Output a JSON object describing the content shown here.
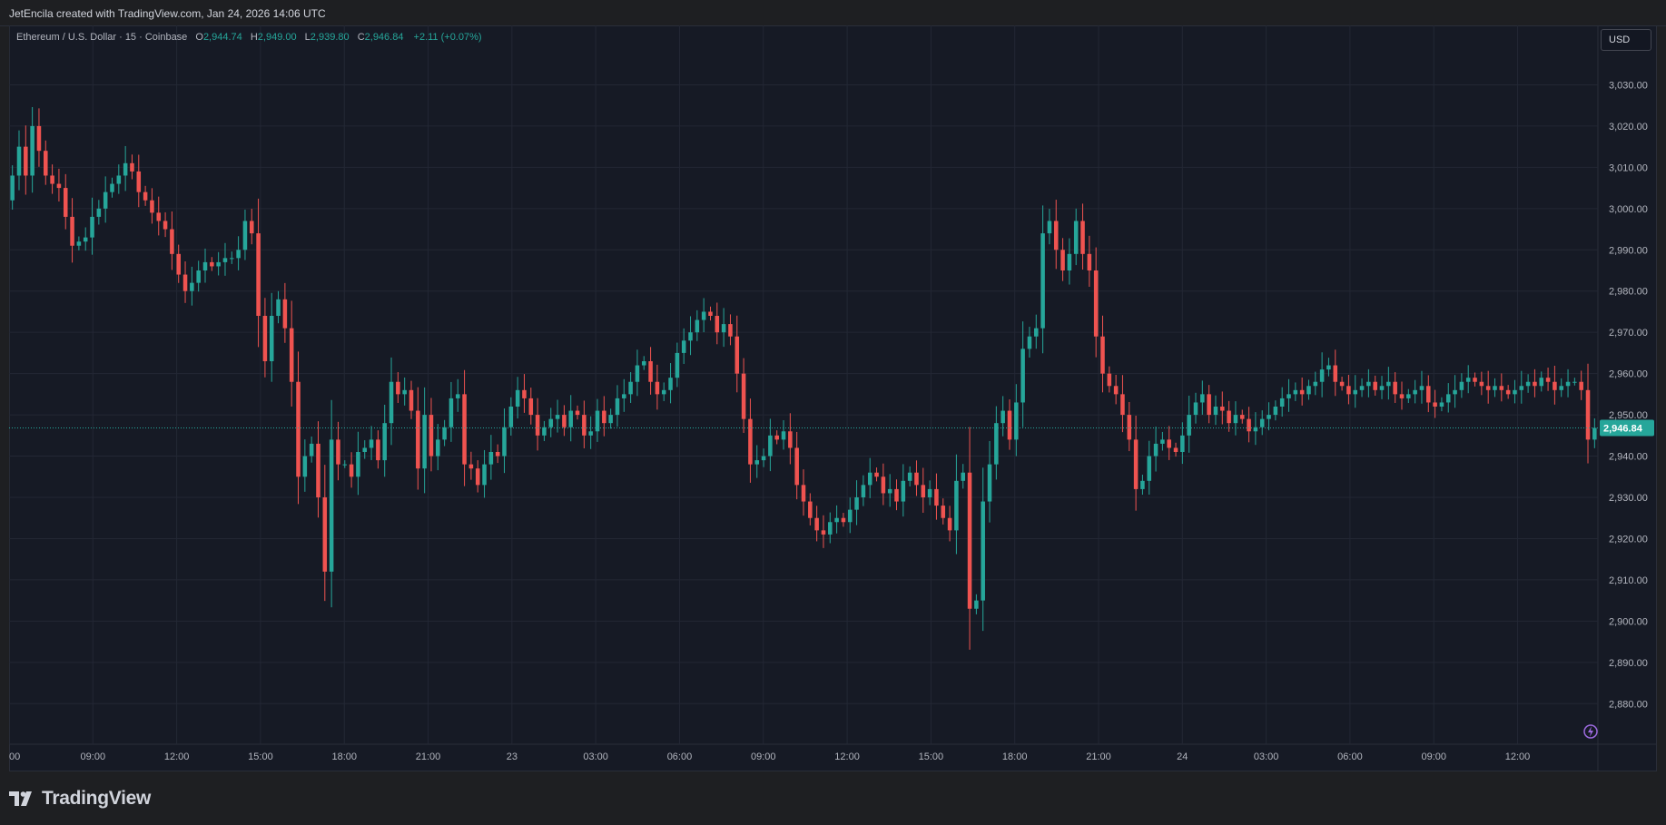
{
  "header": {
    "title": "JetEncila created with TradingView.com, Jan 24, 2026 14:06 UTC"
  },
  "legend": {
    "symbol": "Ethereum / U.S. Dollar · 15 · Coinbase",
    "open_label": "O",
    "open": "2,944.74",
    "high_label": "H",
    "high": "2,949.00",
    "low_label": "L",
    "low": "2,939.80",
    "close_label": "C",
    "close": "2,946.84",
    "change": "+2.11 (+0.07%)"
  },
  "currency_button": "USD",
  "last_price_label": "2,946.84",
  "footer": {
    "brand": "TradingView"
  },
  "colors": {
    "up": "#26a69a",
    "down": "#ef5350",
    "background": "#161a25",
    "grid": "#232734"
  },
  "chart_data": {
    "type": "candlestick",
    "title": "Ethereum / U.S. Dollar · 15 · Coinbase",
    "ylim": [
      2875,
      3040
    ],
    "y_ticks": [
      2880,
      2890,
      2900,
      2910,
      2920,
      2930,
      2940,
      2950,
      2960,
      2970,
      2980,
      2990,
      3000,
      3010,
      3020,
      3030
    ],
    "y_tick_labels": [
      "2,880.00",
      "2,890.00",
      "2,900.00",
      "2,910.00",
      "2,920.00",
      "2,930.00",
      "2,940.00",
      "2,950.00",
      "2,960.00",
      "2,970.00",
      "2,980.00",
      "2,990.00",
      "3,000.00",
      "3,010.00",
      "3,020.00",
      "3,030.00"
    ],
    "x_tick_labels": [
      "00",
      "09:00",
      "12:00",
      "15:00",
      "18:00",
      "21:00",
      "23",
      "03:00",
      "06:00",
      "09:00",
      "12:00",
      "15:00",
      "18:00",
      "21:00",
      "24",
      "03:00",
      "06:00",
      "09:00",
      "12:00"
    ],
    "last_price": 2946.84,
    "closes": [
      3008,
      3015,
      3008,
      3020,
      3014,
      3008,
      3006,
      3005,
      2998,
      2991,
      2992,
      2993,
      2998,
      3000,
      3004,
      3006,
      3008,
      3011,
      3009,
      3004,
      3002,
      2999,
      2997,
      2995,
      2989,
      2984,
      2980,
      2982,
      2985,
      2987,
      2986,
      2987,
      2988,
      2988,
      2990,
      2997,
      2994,
      2974,
      2963,
      2974,
      2978,
      2971,
      2958,
      2935,
      2940,
      2943,
      2930,
      2912,
      2944,
      2938,
      2938,
      2935,
      2941,
      2942,
      2944,
      2939,
      2948,
      2958,
      2955,
      2956,
      2951,
      2937,
      2950,
      2940,
      2944,
      2947,
      2954,
      2955,
      2938,
      2937,
      2933,
      2938,
      2941,
      2940,
      2947,
      2952,
      2956,
      2954,
      2950,
      2945,
      2947,
      2949,
      2950,
      2947,
      2951,
      2950,
      2945,
      2946,
      2951,
      2948,
      2950,
      2954,
      2955,
      2958,
      2962,
      2963,
      2958,
      2955,
      2956,
      2959,
      2965,
      2968,
      2970,
      2973,
      2975,
      2974,
      2970,
      2972,
      2969,
      2960,
      2949,
      2938,
      2939,
      2940,
      2945,
      2944,
      2946,
      2942,
      2933,
      2929,
      2925,
      2922,
      2921,
      2924,
      2925,
      2924,
      2927,
      2930,
      2933,
      2936,
      2935,
      2931,
      2932,
      2929,
      2934,
      2936,
      2933,
      2930,
      2932,
      2928,
      2925,
      2922,
      2934,
      2936,
      2903,
      2905,
      2929,
      2938,
      2948,
      2951,
      2944,
      2953,
      2966,
      2969,
      2971,
      2994,
      2997,
      2990,
      2985,
      2989,
      2997,
      2989,
      2985,
      2969,
      2960,
      2957,
      2955,
      2950,
      2944,
      2932,
      2934,
      2940,
      2943,
      2944,
      2942,
      2941,
      2945,
      2950,
      2953,
      2955,
      2950,
      2952,
      2951,
      2948,
      2950,
      2949,
      2946,
      2947,
      2949,
      2950,
      2952,
      2954,
      2955,
      2956,
      2955,
      2957,
      2958,
      2961,
      2962,
      2958,
      2957,
      2955,
      2956,
      2957,
      2958,
      2956,
      2957,
      2958,
      2955,
      2954,
      2955,
      2956,
      2957,
      2953,
      2952,
      2953,
      2955,
      2956,
      2958,
      2959,
      2958,
      2957,
      2956,
      2957,
      2956,
      2955,
      2956,
      2957,
      2958,
      2957,
      2959,
      2958,
      2956,
      2957,
      2958,
      2958,
      2956,
      2944,
      2946.84
    ]
  }
}
